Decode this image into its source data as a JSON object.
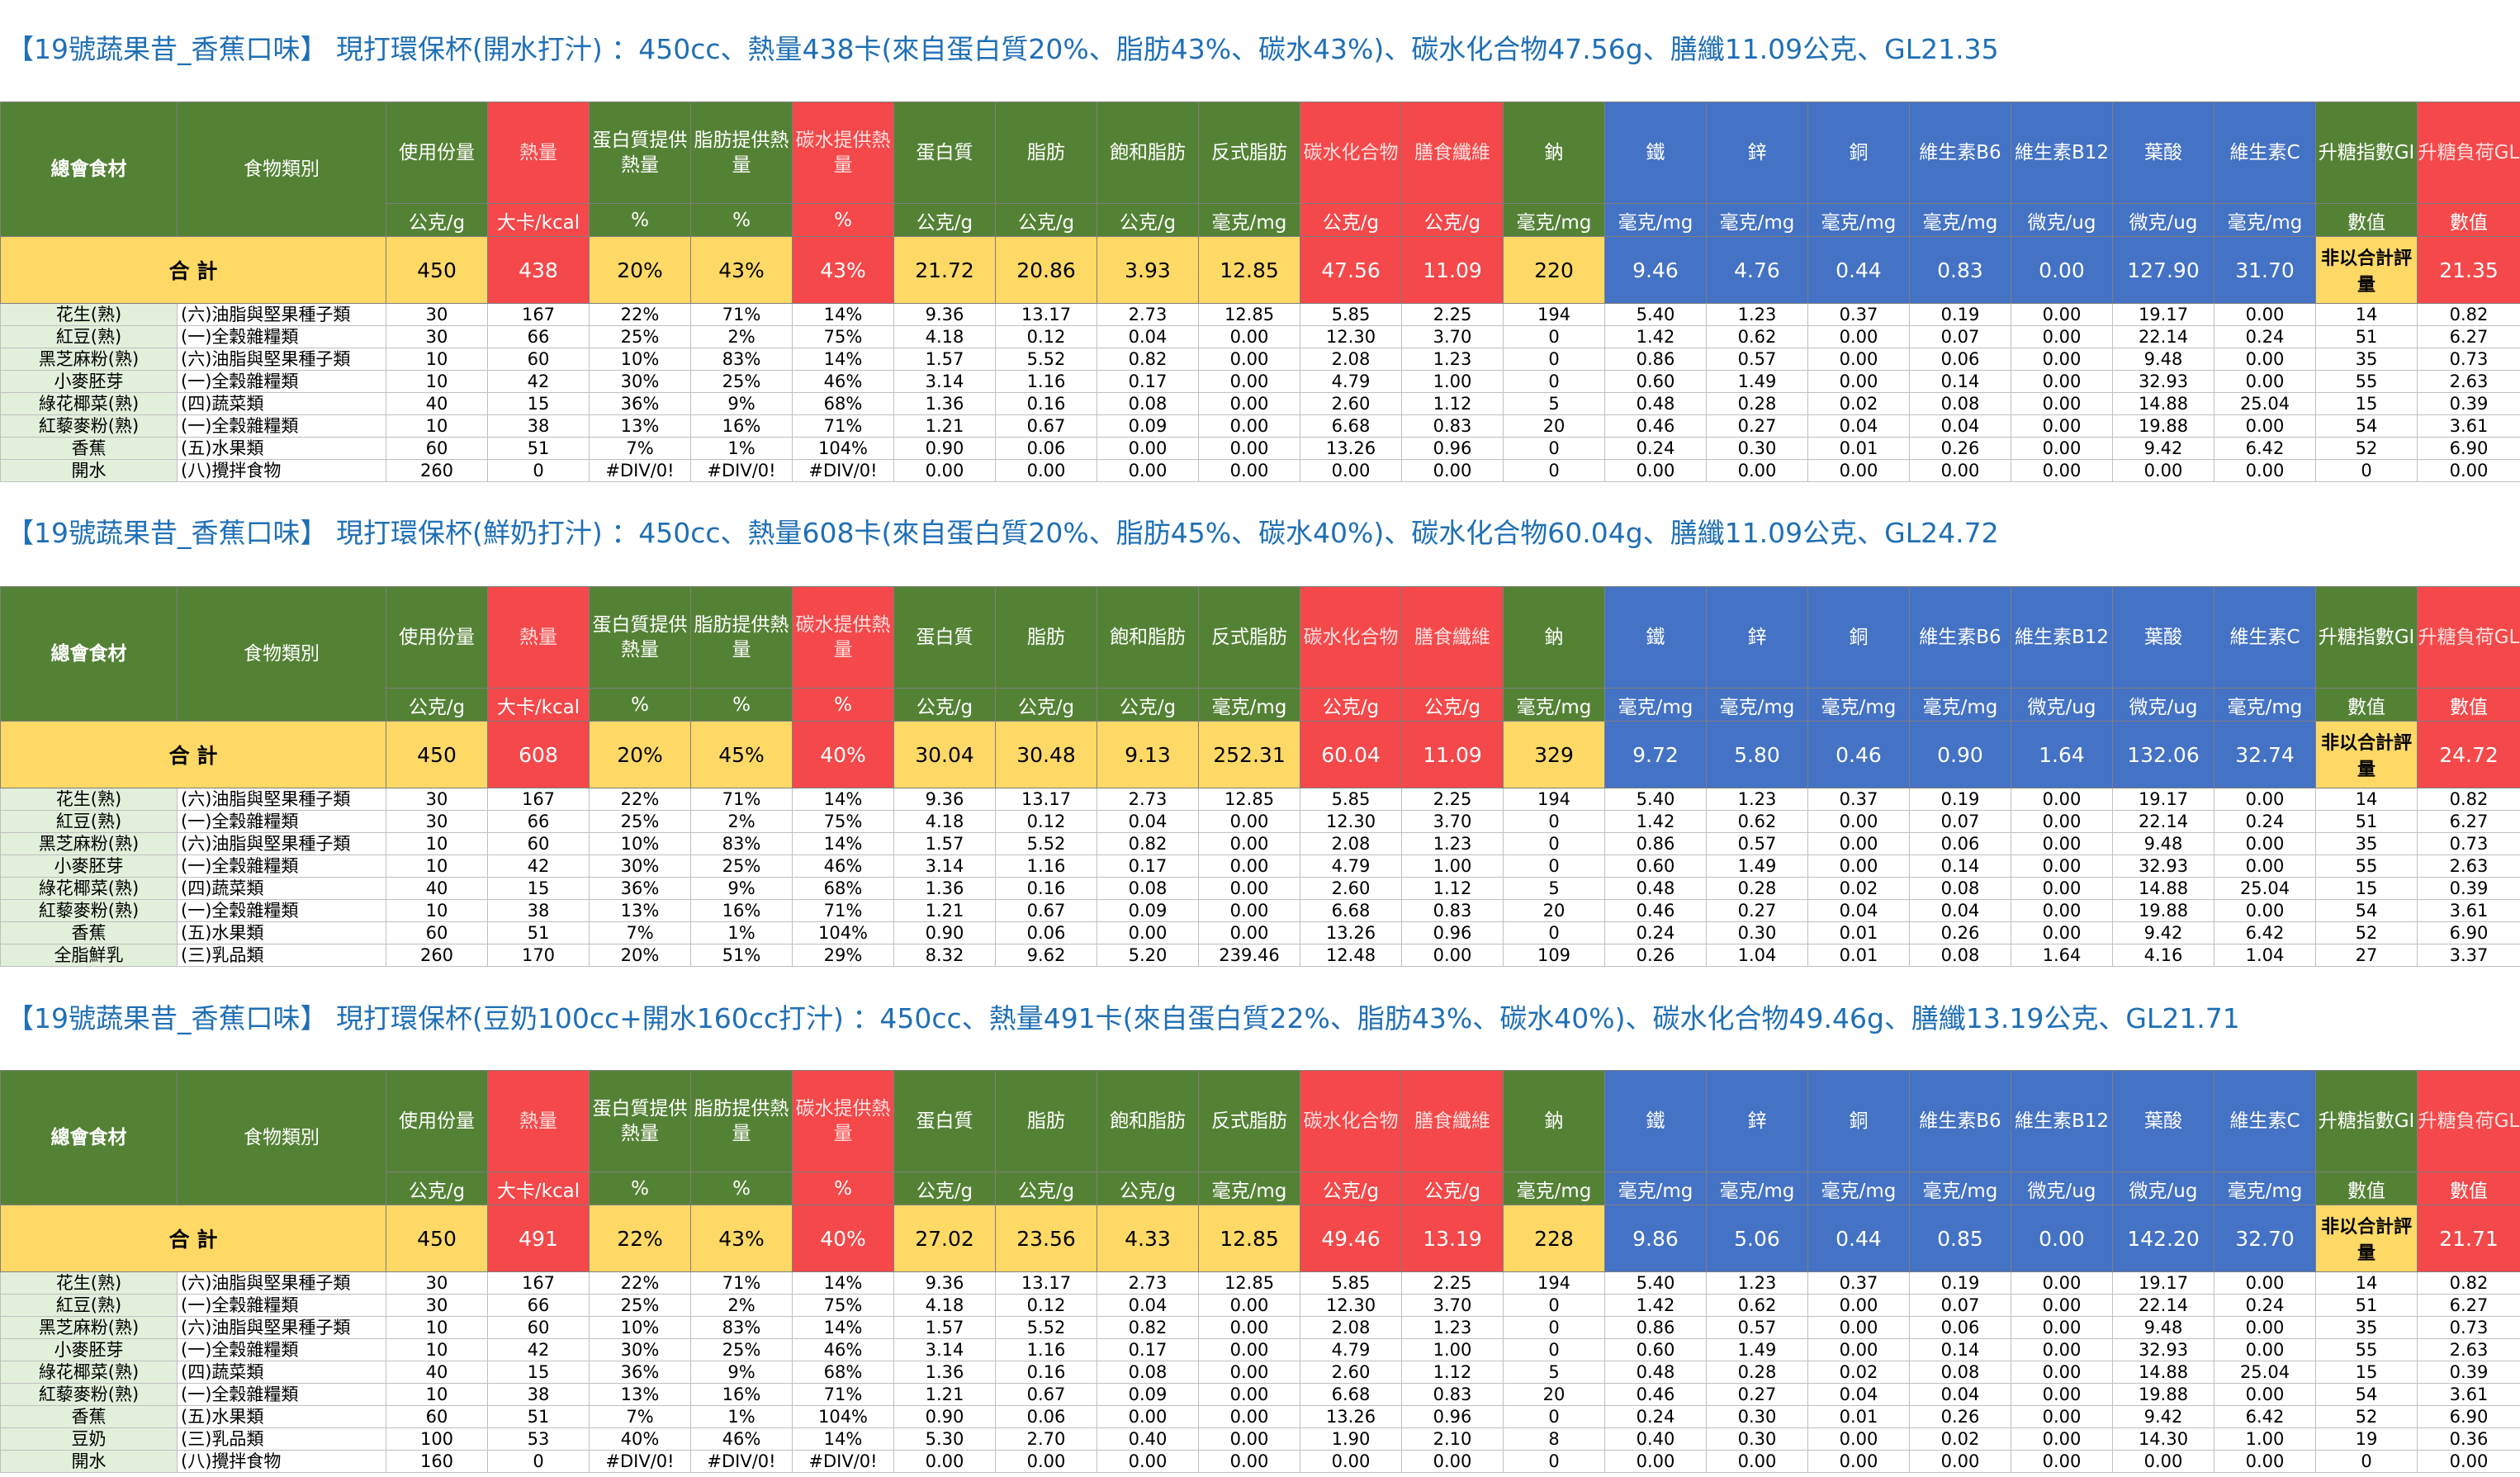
{
  "columns": [
    "總會食材",
    "食物類別",
    "使用份量",
    "熱量",
    "蛋白質提供熱量",
    "脂肪提供熱量",
    "碳水提供熱量",
    "蛋白質",
    "脂肪",
    "飽和脂肪",
    "反式脂肪",
    "碳水化合物",
    "膳食纖維",
    "鈉",
    "鐵",
    "鋅",
    "銅",
    "維生素B6",
    "維生素B12",
    "葉酸",
    "維生素C",
    "升糖指數GI",
    "升糖負荷GL"
  ],
  "units": [
    "公克/g",
    "大卡/kcal",
    "%",
    "%",
    "%",
    "公克/g",
    "公克/g",
    "公克/g",
    "毫克/mg",
    "公克/g",
    "公克/g",
    "毫克/mg",
    "毫克/mg",
    "毫克/mg",
    "毫克/mg",
    "毫克/mg",
    "微克/ug",
    "微克/ug",
    "毫克/mg",
    "數值",
    "數值"
  ],
  "total_label": "合 計",
  "sections": [
    {
      "title": "【19號蔬果昔_香蕉口味】 現打環保杯(開水打汁) ：450cc、熱量438卡(來自蛋白質20%、脂肪43%、碳水43%)、碳水化合物47.56g、膳纖11.09公克、GL21.35",
      "total": [
        "450",
        "438",
        "20%",
        "43%",
        "43%",
        "21.72",
        "20.86",
        "3.93",
        "12.85",
        "47.56",
        "11.09",
        "220",
        "9.46",
        "4.76",
        "0.44",
        "0.83",
        "0.00",
        "127.90",
        "31.70",
        "非以合計評量",
        "21.35"
      ],
      "rows": [
        [
          "花生(熟)",
          "(六)油脂與堅果種子類",
          "30",
          "167",
          "22%",
          "71%",
          "14%",
          "9.36",
          "13.17",
          "2.73",
          "12.85",
          "5.85",
          "2.25",
          "194",
          "5.40",
          "1.23",
          "0.37",
          "0.19",
          "0.00",
          "19.17",
          "0.00",
          "14",
          "0.82"
        ],
        [
          "紅豆(熟)",
          "(一)全穀雜糧類",
          "30",
          "66",
          "25%",
          "2%",
          "75%",
          "4.18",
          "0.12",
          "0.04",
          "0.00",
          "12.30",
          "3.70",
          "0",
          "1.42",
          "0.62",
          "0.00",
          "0.07",
          "0.00",
          "22.14",
          "0.24",
          "51",
          "6.27"
        ],
        [
          "黑芝麻粉(熟)",
          "(六)油脂與堅果種子類",
          "10",
          "60",
          "10%",
          "83%",
          "14%",
          "1.57",
          "5.52",
          "0.82",
          "0.00",
          "2.08",
          "1.23",
          "0",
          "0.86",
          "0.57",
          "0.00",
          "0.06",
          "0.00",
          "9.48",
          "0.00",
          "35",
          "0.73"
        ],
        [
          "小麥胚芽",
          "(一)全穀雜糧類",
          "10",
          "42",
          "30%",
          "25%",
          "46%",
          "3.14",
          "1.16",
          "0.17",
          "0.00",
          "4.79",
          "1.00",
          "0",
          "0.60",
          "1.49",
          "0.00",
          "0.14",
          "0.00",
          "32.93",
          "0.00",
          "55",
          "2.63"
        ],
        [
          "綠花椰菜(熟)",
          "(四)蔬菜類",
          "40",
          "15",
          "36%",
          "9%",
          "68%",
          "1.36",
          "0.16",
          "0.08",
          "0.00",
          "2.60",
          "1.12",
          "5",
          "0.48",
          "0.28",
          "0.02",
          "0.08",
          "0.00",
          "14.88",
          "25.04",
          "15",
          "0.39"
        ],
        [
          "紅藜麥粉(熟)",
          "(一)全穀雜糧類",
          "10",
          "38",
          "13%",
          "16%",
          "71%",
          "1.21",
          "0.67",
          "0.09",
          "0.00",
          "6.68",
          "0.83",
          "20",
          "0.46",
          "0.27",
          "0.04",
          "0.04",
          "0.00",
          "19.88",
          "0.00",
          "54",
          "3.61"
        ],
        [
          "香蕉",
          "(五)水果類",
          "60",
          "51",
          "7%",
          "1%",
          "104%",
          "0.90",
          "0.06",
          "0.00",
          "0.00",
          "13.26",
          "0.96",
          "0",
          "0.24",
          "0.30",
          "0.01",
          "0.26",
          "0.00",
          "9.42",
          "6.42",
          "52",
          "6.90"
        ],
        [
          "開水",
          "(八)攪拌食物",
          "260",
          "0",
          "#DIV/0!",
          "#DIV/0!",
          "#DIV/0!",
          "0.00",
          "0.00",
          "0.00",
          "0.00",
          "0.00",
          "0.00",
          "0",
          "0.00",
          "0.00",
          "0.00",
          "0.00",
          "0.00",
          "0.00",
          "0.00",
          "0",
          "0.00"
        ]
      ]
    },
    {
      "title": "【19號蔬果昔_香蕉口味】 現打環保杯(鮮奶打汁) ：450cc、熱量608卡(來自蛋白質20%、脂肪45%、碳水40%)、碳水化合物60.04g、膳纖11.09公克、GL24.72",
      "total": [
        "450",
        "608",
        "20%",
        "45%",
        "40%",
        "30.04",
        "30.48",
        "9.13",
        "252.31",
        "60.04",
        "11.09",
        "329",
        "9.72",
        "5.80",
        "0.46",
        "0.90",
        "1.64",
        "132.06",
        "32.74",
        "非以合計評量",
        "24.72"
      ],
      "rows": [
        [
          "花生(熟)",
          "(六)油脂與堅果種子類",
          "30",
          "167",
          "22%",
          "71%",
          "14%",
          "9.36",
          "13.17",
          "2.73",
          "12.85",
          "5.85",
          "2.25",
          "194",
          "5.40",
          "1.23",
          "0.37",
          "0.19",
          "0.00",
          "19.17",
          "0.00",
          "14",
          "0.82"
        ],
        [
          "紅豆(熟)",
          "(一)全穀雜糧類",
          "30",
          "66",
          "25%",
          "2%",
          "75%",
          "4.18",
          "0.12",
          "0.04",
          "0.00",
          "12.30",
          "3.70",
          "0",
          "1.42",
          "0.62",
          "0.00",
          "0.07",
          "0.00",
          "22.14",
          "0.24",
          "51",
          "6.27"
        ],
        [
          "黑芝麻粉(熟)",
          "(六)油脂與堅果種子類",
          "10",
          "60",
          "10%",
          "83%",
          "14%",
          "1.57",
          "5.52",
          "0.82",
          "0.00",
          "2.08",
          "1.23",
          "0",
          "0.86",
          "0.57",
          "0.00",
          "0.06",
          "0.00",
          "9.48",
          "0.00",
          "35",
          "0.73"
        ],
        [
          "小麥胚芽",
          "(一)全穀雜糧類",
          "10",
          "42",
          "30%",
          "25%",
          "46%",
          "3.14",
          "1.16",
          "0.17",
          "0.00",
          "4.79",
          "1.00",
          "0",
          "0.60",
          "1.49",
          "0.00",
          "0.14",
          "0.00",
          "32.93",
          "0.00",
          "55",
          "2.63"
        ],
        [
          "綠花椰菜(熟)",
          "(四)蔬菜類",
          "40",
          "15",
          "36%",
          "9%",
          "68%",
          "1.36",
          "0.16",
          "0.08",
          "0.00",
          "2.60",
          "1.12",
          "5",
          "0.48",
          "0.28",
          "0.02",
          "0.08",
          "0.00",
          "14.88",
          "25.04",
          "15",
          "0.39"
        ],
        [
          "紅藜麥粉(熟)",
          "(一)全穀雜糧類",
          "10",
          "38",
          "13%",
          "16%",
          "71%",
          "1.21",
          "0.67",
          "0.09",
          "0.00",
          "6.68",
          "0.83",
          "20",
          "0.46",
          "0.27",
          "0.04",
          "0.04",
          "0.00",
          "19.88",
          "0.00",
          "54",
          "3.61"
        ],
        [
          "香蕉",
          "(五)水果類",
          "60",
          "51",
          "7%",
          "1%",
          "104%",
          "0.90",
          "0.06",
          "0.00",
          "0.00",
          "13.26",
          "0.96",
          "0",
          "0.24",
          "0.30",
          "0.01",
          "0.26",
          "0.00",
          "9.42",
          "6.42",
          "52",
          "6.90"
        ],
        [
          "全脂鮮乳",
          "(三)乳品類",
          "260",
          "170",
          "20%",
          "51%",
          "29%",
          "8.32",
          "9.62",
          "5.20",
          "239.46",
          "12.48",
          "0.00",
          "109",
          "0.26",
          "1.04",
          "0.01",
          "0.08",
          "1.64",
          "4.16",
          "1.04",
          "27",
          "3.37"
        ]
      ]
    },
    {
      "title": "【19號蔬果昔_香蕉口味】 現打環保杯(豆奶100cc+開水160cc打汁) ：450cc、熱量491卡(來自蛋白質22%、脂肪43%、碳水40%)、碳水化合物49.46g、膳纖13.19公克、GL21.71",
      "total": [
        "450",
        "491",
        "22%",
        "43%",
        "40%",
        "27.02",
        "23.56",
        "4.33",
        "12.85",
        "49.46",
        "13.19",
        "228",
        "9.86",
        "5.06",
        "0.44",
        "0.85",
        "0.00",
        "142.20",
        "32.70",
        "非以合計評量",
        "21.71"
      ],
      "rows": [
        [
          "花生(熟)",
          "(六)油脂與堅果種子類",
          "30",
          "167",
          "22%",
          "71%",
          "14%",
          "9.36",
          "13.17",
          "2.73",
          "12.85",
          "5.85",
          "2.25",
          "194",
          "5.40",
          "1.23",
          "0.37",
          "0.19",
          "0.00",
          "19.17",
          "0.00",
          "14",
          "0.82"
        ],
        [
          "紅豆(熟)",
          "(一)全穀雜糧類",
          "30",
          "66",
          "25%",
          "2%",
          "75%",
          "4.18",
          "0.12",
          "0.04",
          "0.00",
          "12.30",
          "3.70",
          "0",
          "1.42",
          "0.62",
          "0.00",
          "0.07",
          "0.00",
          "22.14",
          "0.24",
          "51",
          "6.27"
        ],
        [
          "黑芝麻粉(熟)",
          "(六)油脂與堅果種子類",
          "10",
          "60",
          "10%",
          "83%",
          "14%",
          "1.57",
          "5.52",
          "0.82",
          "0.00",
          "2.08",
          "1.23",
          "0",
          "0.86",
          "0.57",
          "0.00",
          "0.06",
          "0.00",
          "9.48",
          "0.00",
          "35",
          "0.73"
        ],
        [
          "小麥胚芽",
          "(一)全穀雜糧類",
          "10",
          "42",
          "30%",
          "25%",
          "46%",
          "3.14",
          "1.16",
          "0.17",
          "0.00",
          "4.79",
          "1.00",
          "0",
          "0.60",
          "1.49",
          "0.00",
          "0.14",
          "0.00",
          "32.93",
          "0.00",
          "55",
          "2.63"
        ],
        [
          "綠花椰菜(熟)",
          "(四)蔬菜類",
          "40",
          "15",
          "36%",
          "9%",
          "68%",
          "1.36",
          "0.16",
          "0.08",
          "0.00",
          "2.60",
          "1.12",
          "5",
          "0.48",
          "0.28",
          "0.02",
          "0.08",
          "0.00",
          "14.88",
          "25.04",
          "15",
          "0.39"
        ],
        [
          "紅藜麥粉(熟)",
          "(一)全穀雜糧類",
          "10",
          "38",
          "13%",
          "16%",
          "71%",
          "1.21",
          "0.67",
          "0.09",
          "0.00",
          "6.68",
          "0.83",
          "20",
          "0.46",
          "0.27",
          "0.04",
          "0.04",
          "0.00",
          "19.88",
          "0.00",
          "54",
          "3.61"
        ],
        [
          "香蕉",
          "(五)水果類",
          "60",
          "51",
          "7%",
          "1%",
          "104%",
          "0.90",
          "0.06",
          "0.00",
          "0.00",
          "13.26",
          "0.96",
          "0",
          "0.24",
          "0.30",
          "0.01",
          "0.26",
          "0.00",
          "9.42",
          "6.42",
          "52",
          "6.90"
        ],
        [
          "豆奶",
          "(三)乳品類",
          "100",
          "53",
          "40%",
          "46%",
          "14%",
          "5.30",
          "2.70",
          "0.40",
          "0.00",
          "1.90",
          "2.10",
          "8",
          "0.40",
          "0.30",
          "0.00",
          "0.02",
          "0.00",
          "14.30",
          "1.00",
          "19",
          "0.36"
        ],
        [
          "開水",
          "(八)攪拌食物",
          "160",
          "0",
          "#DIV/0!",
          "#DIV/0!",
          "#DIV/0!",
          "0.00",
          "0.00",
          "0.00",
          "0.00",
          "0.00",
          "0.00",
          "0",
          "0.00",
          "0.00",
          "0.00",
          "0.00",
          "0.00",
          "0.00",
          "0.00",
          "0",
          "0.00"
        ]
      ]
    }
  ]
}
